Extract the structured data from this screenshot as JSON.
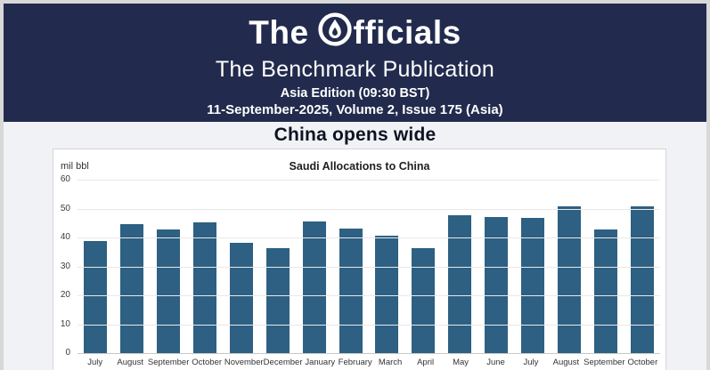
{
  "header": {
    "logo_pre": "The",
    "logo_post": "fficials",
    "subtitle": "The Benchmark Publication",
    "edition": "Asia Edition (09:30 BST)",
    "issue_line": "11-September-2025, Volume 2, Issue 175 (Asia)",
    "background_color": "#222b4d",
    "text_color": "#ffffff"
  },
  "headline": "China opens wide",
  "chart_data": {
    "type": "bar",
    "title": "Saudi Allocations to China",
    "unit_label": "mil bbl",
    "categories": [
      "July",
      "August",
      "September",
      "October",
      "November",
      "December",
      "January",
      "February",
      "March",
      "April",
      "May",
      "June",
      "July",
      "August",
      "September",
      "October"
    ],
    "values": [
      39,
      45,
      43,
      45.5,
      38.5,
      36.5,
      46,
      43.5,
      41,
      36.5,
      48,
      47.5,
      47,
      51,
      43,
      51
    ],
    "ylim": [
      0,
      60
    ],
    "yticks": [
      0,
      10,
      20,
      30,
      40,
      50,
      60
    ],
    "grid": true,
    "legend": false,
    "bar_color": "#2d6082"
  }
}
